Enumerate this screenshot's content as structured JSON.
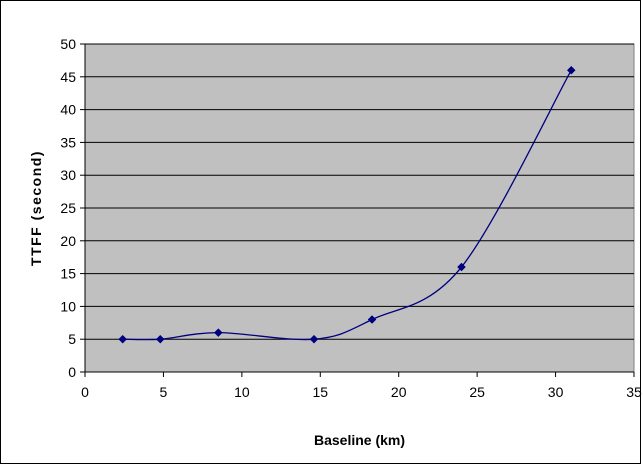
{
  "chart_data": {
    "type": "line",
    "title": "",
    "xlabel": "Baseline (km)",
    "ylabel": "TTFF (second)",
    "xlim": [
      0,
      35
    ],
    "ylim": [
      0,
      50
    ],
    "xticks": [
      0,
      5,
      10,
      15,
      20,
      25,
      30,
      35
    ],
    "yticks": [
      0,
      5,
      10,
      15,
      20,
      25,
      30,
      35,
      40,
      45,
      50
    ],
    "grid": "horizontal",
    "legend": "none",
    "plot_background": "#c0c0c0",
    "series": [
      {
        "color": "#000080",
        "marker": "diamond",
        "smooth": true,
        "x": [
          2.4,
          4.8,
          8.5,
          14.6,
          18.3,
          24.0,
          31.0
        ],
        "y": [
          5,
          5,
          6,
          5,
          8,
          16,
          46
        ]
      }
    ]
  }
}
